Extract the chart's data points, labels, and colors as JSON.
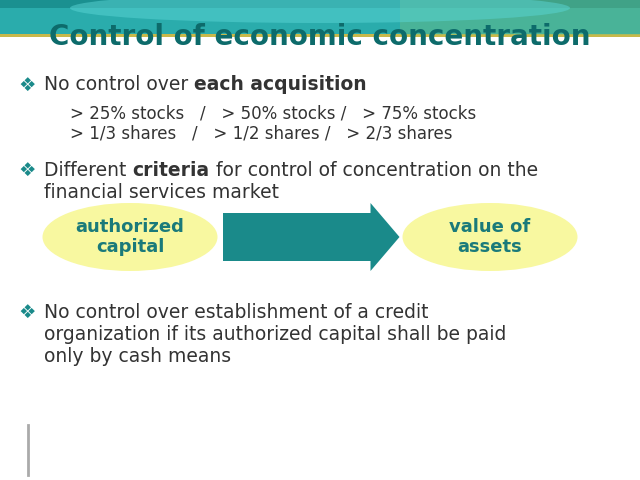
{
  "title": "Control of economic concentration",
  "title_color": "#0d6b6b",
  "title_fontsize": 20,
  "background_color": "#ffffff",
  "teal_header_color": "#2aacac",
  "gold_line_color": "#c8b84a",
  "bullet_color": "#1a8a8a",
  "text_color": "#333333",
  "arrow_color": "#1a8a8a",
  "oval_color": "#f8f8a0",
  "oval_text_color": "#1a7a7a",
  "bottom_line_color": "#aaaaaa",
  "bullet_symbol": "❖",
  "b1_normal": "No control over ",
  "b1_bold": "each acquisition",
  "sub_line1": "> 25% stocks   /   > 50% stocks /   > 75% stocks",
  "sub_line2": "> 1/3 shares   /   > 1/2 shares /   > 2/3 shares",
  "b2_normal": "Different ",
  "b2_bold": "criteria",
  "b2_rest": " for control of concentration on the",
  "b2_line2": "financial services market",
  "oval_left": "authorized\ncapital",
  "oval_right": "value of\nassets",
  "b3_line1": "No control over establishment of a credit",
  "b3_line2": "organization if its authorized capital shall be paid",
  "b3_line3": "only by cash means"
}
